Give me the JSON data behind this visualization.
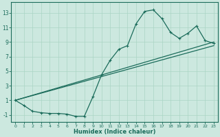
{
  "bg_color": "#cce8df",
  "line_color": "#1a6b5a",
  "grid_color": "#aad4c4",
  "xlabel": "Humidex (Indice chaleur)",
  "xlim": [
    -0.5,
    23.5
  ],
  "ylim": [
    -2.0,
    14.5
  ],
  "xticks": [
    0,
    1,
    2,
    3,
    4,
    5,
    6,
    7,
    8,
    9,
    10,
    11,
    12,
    13,
    14,
    15,
    16,
    17,
    18,
    19,
    20,
    21,
    22,
    23
  ],
  "yticks": [
    -1,
    1,
    3,
    5,
    7,
    9,
    11,
    13
  ],
  "curve1_x": [
    0,
    1,
    2,
    3,
    4,
    5,
    6,
    7,
    8,
    9,
    10,
    11,
    12,
    13,
    14,
    15,
    16,
    17,
    18,
    19,
    20,
    21,
    22,
    23
  ],
  "curve1_y": [
    1.0,
    0.3,
    -0.5,
    -0.7,
    -0.8,
    -0.8,
    -0.9,
    -1.2,
    -1.2,
    1.5,
    4.5,
    6.5,
    8.0,
    8.5,
    11.5,
    13.2,
    13.4,
    12.2,
    10.3,
    9.5,
    10.2,
    11.2,
    9.2,
    8.8
  ],
  "curve2_x": [
    0,
    23
  ],
  "curve2_y": [
    1.0,
    9.0
  ],
  "curve3_x": [
    0,
    23
  ],
  "curve3_y": [
    1.0,
    8.5
  ],
  "figwidth": 3.2,
  "figheight": 2.0,
  "dpi": 100
}
